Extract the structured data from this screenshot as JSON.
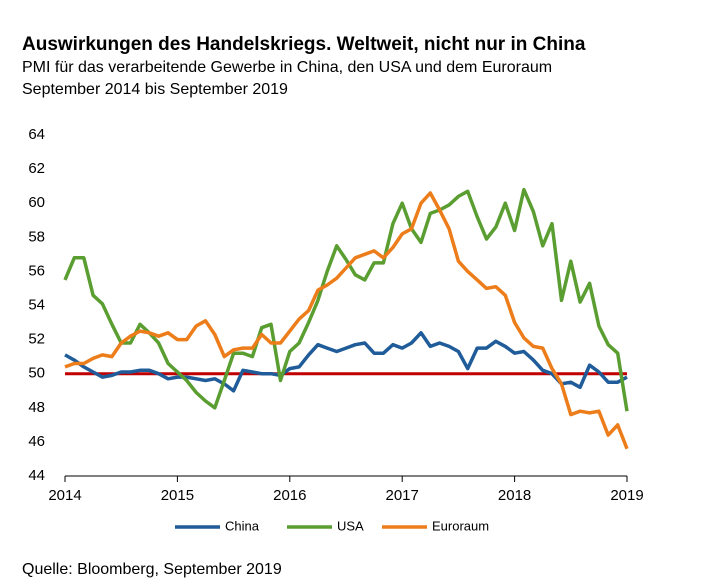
{
  "chart_data": {
    "type": "line",
    "title": "Auswirkungen des Handelskriegs. Weltweit, nicht nur in China",
    "subtitle": "PMI für das verarbeitende Gewerbe in China, den USA und dem Euroraum",
    "subtitle2": "September 2014 bis September 2019",
    "source": "Quelle: Bloomberg, September 2019",
    "x": [
      2014,
      2014.083,
      2014.167,
      2014.25,
      2014.333,
      2014.417,
      2014.5,
      2014.583,
      2014.667,
      2014.75,
      2014.833,
      2014.917,
      2015,
      2015.083,
      2015.167,
      2015.25,
      2015.333,
      2015.417,
      2015.5,
      2015.583,
      2015.667,
      2015.75,
      2015.833,
      2015.917,
      2016,
      2016.083,
      2016.167,
      2016.25,
      2016.333,
      2016.417,
      2016.5,
      2016.583,
      2016.667,
      2016.75,
      2016.833,
      2016.917,
      2017,
      2017.083,
      2017.167,
      2017.25,
      2017.333,
      2017.417,
      2017.5,
      2017.583,
      2017.667,
      2017.75,
      2017.833,
      2017.917,
      2018,
      2018.083,
      2018.167,
      2018.25,
      2018.333,
      2018.417,
      2018.5,
      2018.583,
      2018.667,
      2018.75,
      2018.833,
      2018.917,
      2019
    ],
    "series": [
      {
        "name": "China",
        "color": "#1f5c99",
        "values": [
          51.1,
          50.8,
          50.4,
          50.1,
          49.8,
          49.9,
          50.1,
          50.1,
          50.2,
          50.2,
          50.0,
          49.7,
          49.8,
          49.8,
          49.7,
          49.6,
          49.7,
          49.4,
          49.0,
          50.2,
          50.1,
          50.0,
          50.0,
          49.9,
          50.3,
          50.4,
          51.1,
          51.7,
          51.5,
          51.3,
          51.5,
          51.7,
          51.8,
          51.2,
          51.2,
          51.7,
          51.5,
          51.8,
          52.4,
          51.6,
          51.8,
          51.6,
          51.3,
          50.3,
          51.5,
          51.5,
          51.9,
          51.6,
          51.2,
          51.3,
          50.8,
          50.2,
          50.0,
          49.4,
          49.5,
          49.2,
          50.5,
          50.1,
          49.5,
          49.5,
          49.8
        ]
      },
      {
        "name": "USA",
        "color": "#5a9e32",
        "values": [
          55.5,
          56.8,
          56.8,
          54.6,
          54.1,
          52.9,
          51.8,
          51.8,
          52.9,
          52.4,
          51.8,
          50.6,
          50.1,
          49.6,
          48.9,
          48.4,
          48.0,
          49.6,
          51.2,
          51.2,
          51.0,
          52.7,
          52.9,
          49.6,
          51.3,
          51.8,
          53.0,
          54.3,
          56.0,
          57.5,
          56.7,
          55.8,
          55.5,
          56.5,
          56.5,
          58.8,
          60.0,
          58.5,
          57.7,
          59.4,
          59.6,
          59.9,
          60.4,
          60.7,
          59.2,
          57.9,
          58.6,
          60.0,
          58.4,
          60.8,
          59.5,
          57.5,
          58.8,
          54.3,
          56.6,
          54.2,
          55.3,
          52.8,
          51.7,
          51.2,
          47.8
        ]
      },
      {
        "name": "Euroraum",
        "color": "#ed7d1a",
        "values": [
          50.4,
          50.6,
          50.6,
          50.9,
          51.1,
          51.0,
          51.8,
          52.2,
          52.5,
          52.4,
          52.2,
          52.4,
          52.0,
          52.0,
          52.8,
          53.1,
          52.3,
          51.0,
          51.4,
          51.5,
          51.5,
          52.3,
          51.8,
          51.8,
          52.5,
          53.2,
          53.7,
          54.9,
          55.2,
          55.6,
          56.2,
          56.8,
          57.0,
          57.2,
          56.8,
          57.4,
          58.2,
          58.5,
          60.0,
          60.6,
          59.6,
          58.5,
          56.6,
          56.0,
          55.5,
          55.0,
          55.1,
          54.6,
          53.0,
          52.1,
          51.6,
          51.5,
          50.3,
          49.4,
          47.6,
          47.8,
          47.7,
          47.8,
          46.4,
          47.0,
          45.6
        ]
      }
    ],
    "reference_line": {
      "value": 50,
      "color": "#c00000"
    },
    "xlim": [
      2014,
      2019
    ],
    "xticks": [
      2014,
      2015,
      2016,
      2017,
      2018,
      2019
    ],
    "ylim": [
      44,
      64
    ],
    "yticks": [
      44,
      46,
      48,
      50,
      52,
      54,
      56,
      58,
      60,
      62,
      64
    ],
    "grid": false,
    "legend": "bottom"
  }
}
